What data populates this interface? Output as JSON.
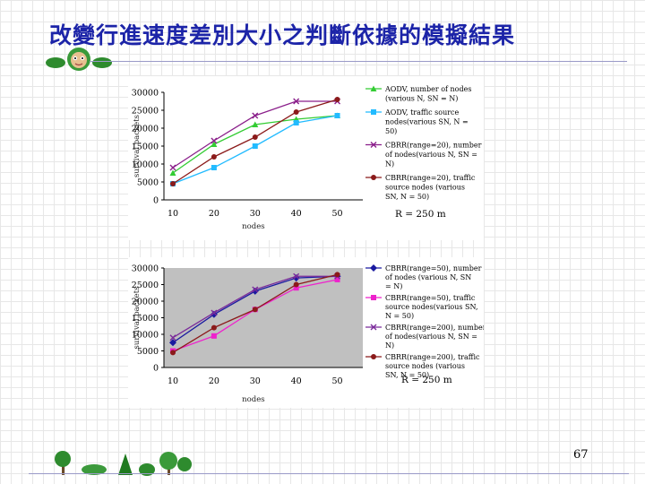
{
  "page": {
    "title": "改變行進速度差別大小之判斷依據的模擬結果",
    "page_number": "67"
  },
  "chart_data": [
    {
      "type": "line",
      "background": "#ffffff",
      "x": [
        10,
        20,
        30,
        40,
        50
      ],
      "xlabel": "nodes",
      "ylabel": "survival packets",
      "ylim": [
        0,
        30000
      ],
      "yticks": [
        0,
        5000,
        10000,
        15000,
        20000,
        25000,
        30000
      ],
      "annotation": "R = 250 m",
      "series": [
        {
          "name": "AODV, number of nodes (various N, SN = N)",
          "color": "#33cc33",
          "marker": "triangle",
          "values": [
            7500,
            15500,
            21000,
            22500,
            23500
          ]
        },
        {
          "name": "AODV, traffic source nodes(various SN, N = 50)",
          "color": "#22bbff",
          "marker": "square",
          "values": [
            4500,
            9000,
            15000,
            21500,
            23500
          ]
        },
        {
          "name": "CBRR(range=20), number of nodes(various N, SN = N)",
          "color": "#8a1e8a",
          "marker": "x",
          "values": [
            9000,
            16500,
            23500,
            27500,
            27500
          ]
        },
        {
          "name": "CBRR(range=20), traffic source nodes (various SN, N = 50)",
          "color": "#8b1a1a",
          "marker": "circle",
          "values": [
            4500,
            12000,
            17500,
            24500,
            28000
          ]
        }
      ]
    },
    {
      "type": "line",
      "background": "#c0c0c0",
      "x": [
        10,
        20,
        30,
        40,
        50
      ],
      "xlabel": "nodes",
      "ylabel": "survival packets",
      "ylim": [
        0,
        30000
      ],
      "yticks": [
        0,
        5000,
        10000,
        15000,
        20000,
        25000,
        30000
      ],
      "annotation": "R = 250 m",
      "series": [
        {
          "name": "CBRR(range=50), number of nodes (various N, SN = N)",
          "color": "#1a1aa0",
          "marker": "diamond",
          "values": [
            7500,
            16000,
            23000,
            27000,
            27500
          ]
        },
        {
          "name": "CBRR(range=50), traffic source nodes(various SN, N = 50)",
          "color": "#ee22cc",
          "marker": "square",
          "values": [
            5000,
            9500,
            17500,
            24000,
            26500
          ]
        },
        {
          "name": "CBRR(range=200), number of nodes(various N, SN = N)",
          "color": "#7a2a9a",
          "marker": "x",
          "values": [
            9000,
            16500,
            23500,
            27500,
            27500
          ]
        },
        {
          "name": "CBRR(range=200), traffic source nodes (various SN, N = 50)",
          "color": "#8b1a1a",
          "marker": "circle",
          "values": [
            4500,
            12000,
            17500,
            25000,
            28000
          ]
        }
      ]
    }
  ]
}
